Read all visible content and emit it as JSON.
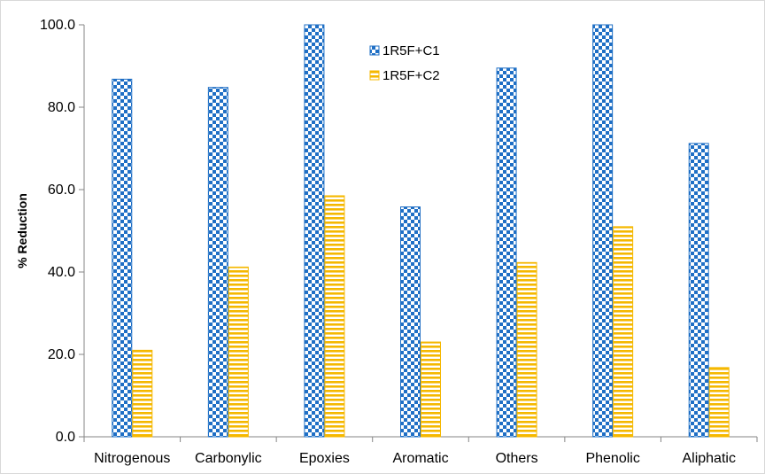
{
  "chart_data": {
    "type": "bar",
    "categories": [
      "Nitrogenous",
      "Carbonylic",
      "Epoxies",
      "Aromatic",
      "Others",
      "Phenolic",
      "Aliphatic"
    ],
    "series": [
      {
        "name": "1R5F+C1",
        "values": [
          86.8,
          84.8,
          100.0,
          55.8,
          89.5,
          100.0,
          71.2
        ],
        "color": "#1F6FC5",
        "pattern": "checkerboard"
      },
      {
        "name": "1R5F+C2",
        "values": [
          21.0,
          41.2,
          58.5,
          23.0,
          42.3,
          51.0,
          16.8
        ],
        "color": "#F5B800",
        "pattern": "horizontal-stripes"
      }
    ],
    "title": "",
    "xlabel": "",
    "ylabel": "% Reduction",
    "ylim": [
      0,
      100
    ],
    "yticks": [
      "0.0",
      "20.0",
      "40.0",
      "60.0",
      "80.0",
      "100.0"
    ],
    "grid": false,
    "legend_position": "top-center"
  }
}
